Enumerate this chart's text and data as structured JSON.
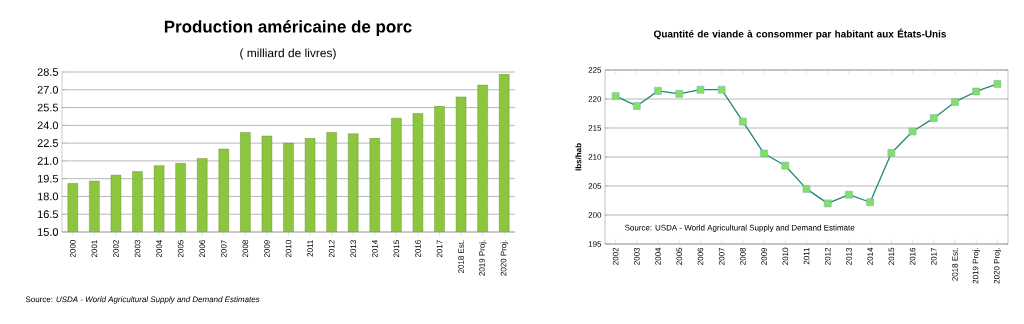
{
  "chart_data": [
    {
      "type": "bar",
      "title": "Production américaine de porc",
      "subtitle": "( milliard de livres)",
      "categories": [
        "2000",
        "2001",
        "2002",
        "2003",
        "2004",
        "2005",
        "2006",
        "2007",
        "2008",
        "2009",
        "2010",
        "2011",
        "2012",
        "2013",
        "2014",
        "2015",
        "2016",
        "2017",
        "2018 Est.",
        "2019 Proj.",
        "2020 Proj."
      ],
      "values": [
        19.1,
        19.3,
        19.8,
        20.1,
        20.6,
        20.8,
        21.2,
        22.0,
        23.4,
        23.1,
        22.5,
        22.9,
        23.4,
        23.3,
        22.9,
        24.6,
        25.0,
        25.6,
        26.4,
        27.4,
        28.3
      ],
      "color": "#8cc63f",
      "ylim": [
        15.0,
        28.5
      ],
      "yticks": [
        {
          "value": 15.0,
          "label": "15.0"
        },
        {
          "value": 16.5,
          "label": "16.5"
        },
        {
          "value": 18.0,
          "label": "18.0"
        },
        {
          "value": 19.5,
          "label": "19.5"
        },
        {
          "value": 21.0,
          "label": "21.0"
        },
        {
          "value": 22.5,
          "label": "22.5"
        },
        {
          "value": 24.0,
          "label": "24.0"
        },
        {
          "value": 25.5,
          "label": "25.5"
        },
        {
          "value": 27.0,
          "label": "27.0"
        },
        {
          "value": 28.5,
          "label": "28.5"
        }
      ],
      "grid": "y",
      "annotations": [
        "Source: *USDA - World Agricultural Supply and Demand Estimates*"
      ]
    },
    {
      "type": "line",
      "title": "Quantité de viande à consommer par habitant aux États-Unis",
      "ylabel": "lbs/hab",
      "categories": [
        "2002",
        "2003",
        "2004",
        "2005",
        "2006",
        "2007",
        "2008",
        "2009",
        "2010",
        "2011",
        "2012",
        "2013",
        "2014",
        "2015",
        "2016",
        "2017",
        "2018 Est.",
        "2019 Proj.",
        "2020 Proj."
      ],
      "values": [
        220.5,
        218.8,
        221.4,
        220.9,
        221.6,
        221.6,
        216.1,
        210.6,
        208.5,
        204.5,
        202.0,
        203.5,
        202.2,
        210.7,
        214.4,
        216.7,
        219.5,
        221.3,
        222.6
      ],
      "color": "#1f8a70",
      "marker": "square",
      "ylim": [
        195,
        225
      ],
      "yticks": [
        195,
        200,
        205,
        210,
        215,
        220,
        225
      ],
      "grid": "y",
      "annotations": [
        "Source: USDA - World Agricultural Supply and Demand Estimate"
      ]
    }
  ]
}
